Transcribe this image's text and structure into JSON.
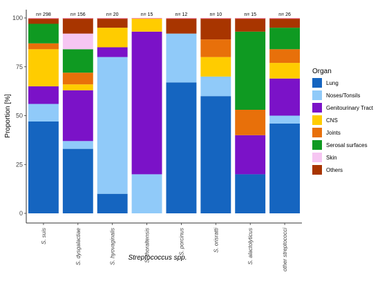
{
  "chart_data": {
    "type": "bar",
    "stacked": true,
    "xlabel": "Streptococcus spp.",
    "ylabel": "Proportion [%]",
    "ylim": [
      0,
      100
    ],
    "yticks": [
      0,
      25,
      50,
      75,
      100
    ],
    "grid": false,
    "legend_title": "Organ",
    "legend_position": "right",
    "categories": [
      "S. suis",
      "S. dysgalactiae",
      "S. hyovaginalis",
      "S. thoraltensis",
      "S. porcinus",
      "S. orisratti",
      "S. alactolyticus",
      "other streptococci"
    ],
    "counts": [
      "n= 298",
      "n= 156",
      "n= 20",
      "n= 15",
      "n= 12",
      "n= 10",
      "n= 15",
      "n= 26"
    ],
    "series": [
      {
        "name": "Lung",
        "color": "#1565C0",
        "values": [
          47,
          33,
          10,
          0,
          67,
          60,
          20,
          46
        ]
      },
      {
        "name": "Noses/Tonsils",
        "color": "#90CAF9",
        "values": [
          9,
          4,
          70,
          20,
          25,
          10,
          0,
          4
        ]
      },
      {
        "name": "Genitourinary Tract",
        "color": "#7B12C8",
        "values": [
          9,
          26,
          5,
          73,
          0,
          0,
          20,
          19
        ]
      },
      {
        "name": "CNS",
        "color": "#FFCC00",
        "values": [
          19,
          3,
          10,
          7,
          0,
          10,
          0,
          8
        ]
      },
      {
        "name": "Joints",
        "color": "#E8700A",
        "values": [
          3,
          6,
          0,
          0,
          0,
          9,
          13,
          7
        ]
      },
      {
        "name": "Serosal surfaces",
        "color": "#0F9A22",
        "values": [
          10,
          12,
          0,
          0,
          0,
          0,
          40,
          11
        ]
      },
      {
        "name": "Skin",
        "color": "#F6C6F2",
        "values": [
          0,
          8,
          0,
          0,
          0,
          0,
          0,
          0
        ]
      },
      {
        "name": "Others",
        "color": "#A83500",
        "values": [
          3,
          8,
          5,
          0,
          8,
          11,
          7,
          5
        ]
      }
    ]
  }
}
